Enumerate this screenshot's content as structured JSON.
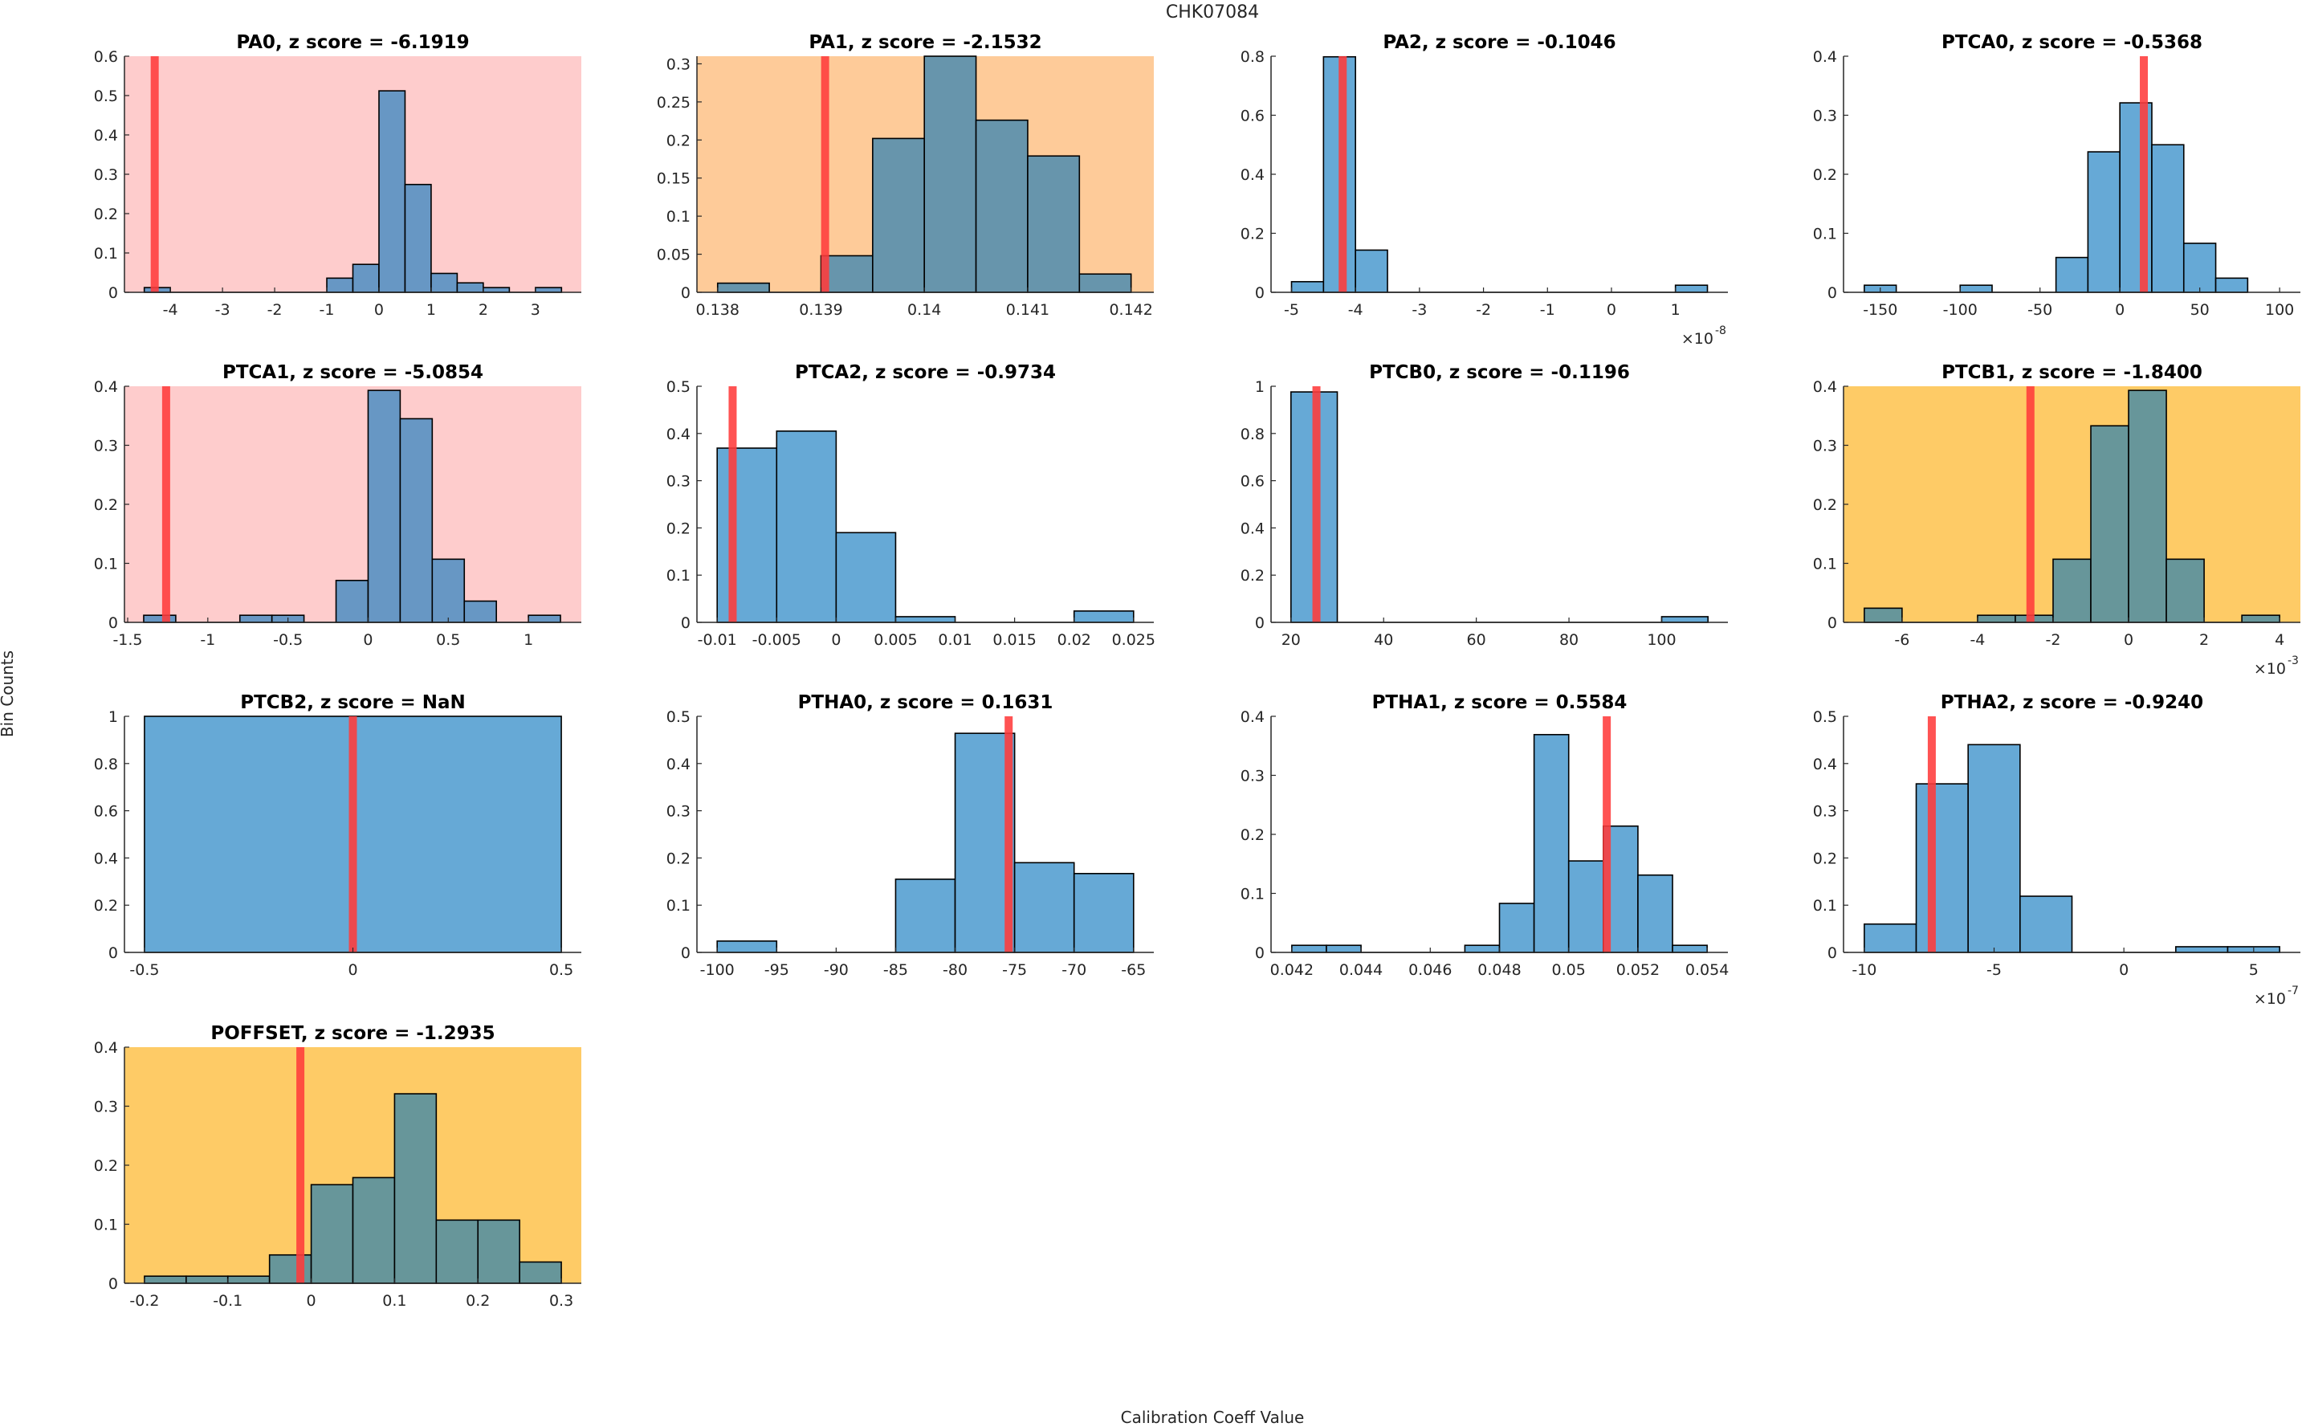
{
  "figure": {
    "suptitle": "CHK07084",
    "ylabel": "Bin Counts",
    "xlabel": "Calibration Coeff Value",
    "colors": {
      "bar_blue": "#66a9d6",
      "bar_on_pink": "#6797c4",
      "bar_on_orange": "#6795ac",
      "bar_on_yellow": "#67969a",
      "bg_pink": "#fecccc",
      "bg_orange": "#fecb99",
      "bg_yellow": "#fecb66",
      "marker_red": "#ff3b3b"
    }
  },
  "chart_data": [
    {
      "type": "bar",
      "name": "PA0",
      "title": "PA0, z score = -6.1919",
      "z_score": -6.1919,
      "background": "pink",
      "bin_edges_start": -4.5,
      "bin_width": 0.5,
      "values": [
        0.012,
        0,
        0,
        0,
        0,
        0,
        0,
        0.036,
        0.071,
        0.512,
        0.274,
        0.048,
        0.024,
        0.012,
        0,
        0.012
      ],
      "marker": -4.3,
      "xlim": [
        -4.88,
        3.88
      ],
      "ylim": [
        0,
        0.6
      ],
      "xticks": [
        -4,
        -3,
        -2,
        -1,
        0,
        1,
        2,
        3
      ],
      "xtick_labels": [
        "-4",
        "-3",
        "-2",
        "-1",
        "0",
        "1",
        "2",
        "3"
      ],
      "yticks": [
        0,
        0.1,
        0.2,
        0.3,
        0.4,
        0.5,
        0.6
      ],
      "ytick_labels": [
        "0",
        "0.1",
        "0.2",
        "0.3",
        "0.4",
        "0.5",
        "0.6"
      ],
      "exponent": ""
    },
    {
      "type": "bar",
      "name": "PA1",
      "title": "PA1, z score = -2.1532",
      "z_score": -2.1532,
      "background": "orange",
      "bin_edges_start": 0.138,
      "bin_width": 0.0005,
      "values": [
        0.012,
        0,
        0.048,
        0.202,
        0.31,
        0.226,
        0.179,
        0.024
      ],
      "marker": 0.13904,
      "xlim": [
        0.1378,
        0.14222
      ],
      "ylim": [
        0,
        0.31
      ],
      "xticks": [
        0.138,
        0.139,
        0.14,
        0.141,
        0.142
      ],
      "xtick_labels": [
        "0.138",
        "0.139",
        "0.14",
        "0.141",
        "0.142"
      ],
      "yticks": [
        0,
        0.05,
        0.1,
        0.15,
        0.2,
        0.25,
        0.3
      ],
      "ytick_labels": [
        "0",
        "0.05",
        "0.1",
        "0.15",
        "0.2",
        "0.25",
        "0.3"
      ],
      "exponent": ""
    },
    {
      "type": "bar",
      "name": "PA2",
      "title": "PA2, z score = -0.1046",
      "z_score": -0.1046,
      "background": "none",
      "bin_edges_start": -5,
      "bin_width": 0.5,
      "values": [
        0.036,
        0.798,
        0.143,
        0,
        0,
        0,
        0,
        0,
        0,
        0,
        0,
        0,
        0.024
      ],
      "marker": -4.2,
      "xlim": [
        -5.32,
        1.82
      ],
      "ylim": [
        0,
        0.8
      ],
      "xticks": [
        -5,
        -4,
        -3,
        -2,
        -1,
        0,
        1
      ],
      "xtick_labels": [
        "-5",
        "-4",
        "-3",
        "-2",
        "-1",
        "0",
        "1"
      ],
      "yticks": [
        0,
        0.2,
        0.4,
        0.6,
        0.8
      ],
      "ytick_labels": [
        "0",
        "0.2",
        "0.4",
        "0.6",
        "0.8"
      ],
      "exponent": "×10",
      "exponent_power": "-8"
    },
    {
      "type": "bar",
      "name": "PTCA0",
      "title": "PTCA0, z score = -0.5368",
      "z_score": -0.5368,
      "background": "none",
      "bin_edges_start": -160,
      "bin_width": 20,
      "values": [
        0.012,
        0,
        0,
        0.012,
        0,
        0,
        0.059,
        0.238,
        0.321,
        0.25,
        0.083,
        0.024
      ],
      "marker": 15,
      "xlim": [
        -173,
        113
      ],
      "ylim": [
        0,
        0.4
      ],
      "xticks": [
        -150,
        -100,
        -50,
        0,
        50,
        100
      ],
      "xtick_labels": [
        "-150",
        "-100",
        "-50",
        "0",
        "50",
        "100"
      ],
      "yticks": [
        0,
        0.1,
        0.2,
        0.3,
        0.4
      ],
      "ytick_labels": [
        "0",
        "0.1",
        "0.2",
        "0.3",
        "0.4"
      ],
      "exponent": ""
    },
    {
      "type": "bar",
      "name": "PTCA1",
      "title": "PTCA1, z score = -5.0854",
      "z_score": -5.0854,
      "background": "pink",
      "bin_edges_start": -1.4,
      "bin_width": 0.2,
      "values": [
        0.012,
        0,
        0,
        0.012,
        0.012,
        0,
        0.071,
        0.393,
        0.345,
        0.107,
        0.036,
        0,
        0.012
      ],
      "marker": -1.26,
      "xlim": [
        -1.52,
        1.33
      ],
      "ylim": [
        0,
        0.4
      ],
      "xticks": [
        -1.5,
        -1,
        -0.5,
        0,
        0.5,
        1
      ],
      "xtick_labels": [
        "-1.5",
        "-1",
        "-0.5",
        "0",
        "0.5",
        "1"
      ],
      "yticks": [
        0,
        0.1,
        0.2,
        0.3,
        0.4
      ],
      "ytick_labels": [
        "0",
        "0.1",
        "0.2",
        "0.3",
        "0.4"
      ],
      "exponent": ""
    },
    {
      "type": "bar",
      "name": "PTCA2",
      "title": "PTCA2, z score = -0.9734",
      "z_score": -0.9734,
      "background": "none",
      "bin_edges_start": -0.01,
      "bin_width": 0.005,
      "values": [
        0.369,
        0.405,
        0.19,
        0.012,
        0,
        0,
        0.024
      ],
      "marker": -0.0087,
      "xlim": [
        -0.0117,
        0.0267
      ],
      "ylim": [
        0,
        0.5
      ],
      "xticks": [
        -0.01,
        -0.005,
        0,
        0.005,
        0.01,
        0.015,
        0.02,
        0.025
      ],
      "xtick_labels": [
        "-0.01",
        "-0.005",
        "0",
        "0.005",
        "0.01",
        "0.015",
        "0.02",
        "0.025"
      ],
      "yticks": [
        0,
        0.1,
        0.2,
        0.3,
        0.4,
        0.5
      ],
      "ytick_labels": [
        "0",
        "0.1",
        "0.2",
        "0.3",
        "0.4",
        "0.5"
      ],
      "exponent": ""
    },
    {
      "type": "bar",
      "name": "PTCB0",
      "title": "PTCB0, z score = -0.1196",
      "z_score": -0.1196,
      "background": "none",
      "bin_edges_start": 20,
      "bin_width": 10,
      "values": [
        0.976,
        0,
        0,
        0,
        0,
        0,
        0,
        0,
        0.024
      ],
      "marker": 25.5,
      "xlim": [
        15.7,
        114.3
      ],
      "ylim": [
        0,
        1
      ],
      "xticks": [
        20,
        40,
        60,
        80,
        100
      ],
      "xtick_labels": [
        "20",
        "40",
        "60",
        "80",
        "100"
      ],
      "yticks": [
        0,
        0.2,
        0.4,
        0.6,
        0.8,
        1
      ],
      "ytick_labels": [
        "0",
        "0.2",
        "0.4",
        "0.6",
        "0.8",
        "1"
      ],
      "exponent": ""
    },
    {
      "type": "bar",
      "name": "PTCB1",
      "title": "PTCB1, z score = -1.8400",
      "z_score": -1.84,
      "background": "yellow",
      "bin_edges_start": -7,
      "bin_width": 1,
      "values": [
        0.024,
        0,
        0,
        0.012,
        0.012,
        0.107,
        0.333,
        0.393,
        0.107,
        0,
        0.012
      ],
      "marker": -2.6,
      "xlim": [
        -7.55,
        4.55
      ],
      "ylim": [
        0,
        0.4
      ],
      "xticks": [
        -6,
        -4,
        -2,
        0,
        2,
        4
      ],
      "xtick_labels": [
        "-6",
        "-4",
        "-2",
        "0",
        "2",
        "4"
      ],
      "yticks": [
        0,
        0.1,
        0.2,
        0.3,
        0.4
      ],
      "ytick_labels": [
        "0",
        "0.1",
        "0.2",
        "0.3",
        "0.4"
      ],
      "exponent": "×10",
      "exponent_power": "-3"
    },
    {
      "type": "bar",
      "name": "PTCB2",
      "title": "PTCB2, z score = NaN",
      "z_score": "NaN",
      "background": "none",
      "bin_edges_start": -0.5,
      "bin_width": 1,
      "values": [
        1
      ],
      "marker": 0,
      "xlim": [
        -0.548,
        0.548
      ],
      "ylim": [
        0,
        1
      ],
      "xticks": [
        -0.5,
        0,
        0.5
      ],
      "xtick_labels": [
        "-0.5",
        "0",
        "0.5"
      ],
      "yticks": [
        0,
        0.2,
        0.4,
        0.6,
        0.8,
        1
      ],
      "ytick_labels": [
        "0",
        "0.2",
        "0.4",
        "0.6",
        "0.8",
        "1"
      ],
      "exponent": ""
    },
    {
      "type": "bar",
      "name": "PTHA0",
      "title": "PTHA0, z score = 0.1631",
      "z_score": 0.1631,
      "background": "none",
      "bin_edges_start": -100,
      "bin_width": 5,
      "values": [
        0.024,
        0,
        0,
        0.155,
        0.464,
        0.19,
        0.167
      ],
      "marker": -75.5,
      "xlim": [
        -101.7,
        -63.3
      ],
      "ylim": [
        0,
        0.5
      ],
      "xticks": [
        -100,
        -95,
        -90,
        -85,
        -80,
        -75,
        -70,
        -65
      ],
      "xtick_labels": [
        "-100",
        "-95",
        "-90",
        "-85",
        "-80",
        "-75",
        "-70",
        "-65"
      ],
      "yticks": [
        0,
        0.1,
        0.2,
        0.3,
        0.4,
        0.5
      ],
      "ytick_labels": [
        "0",
        "0.1",
        "0.2",
        "0.3",
        "0.4",
        "0.5"
      ],
      "exponent": ""
    },
    {
      "type": "bar",
      "name": "PTHA1",
      "title": "PTHA1, z score = 0.5584",
      "z_score": 0.5584,
      "background": "none",
      "bin_edges_start": 0.042,
      "bin_width": 0.001,
      "values": [
        0.012,
        0.012,
        0,
        0,
        0,
        0.012,
        0.083,
        0.369,
        0.155,
        0.214,
        0.131,
        0.012
      ],
      "marker": 0.0511,
      "xlim": [
        0.0414,
        0.0546
      ],
      "ylim": [
        0,
        0.4
      ],
      "xticks": [
        0.042,
        0.044,
        0.046,
        0.048,
        0.05,
        0.052,
        0.054
      ],
      "xtick_labels": [
        "0.042",
        "0.044",
        "0.046",
        "0.048",
        "0.05",
        "0.052",
        "0.054"
      ],
      "yticks": [
        0,
        0.1,
        0.2,
        0.3,
        0.4
      ],
      "ytick_labels": [
        "0",
        "0.1",
        "0.2",
        "0.3",
        "0.4"
      ],
      "exponent": ""
    },
    {
      "type": "bar",
      "name": "PTHA2",
      "title": "PTHA2, z score = -0.9240",
      "z_score": -0.924,
      "background": "none",
      "bin_edges_start": -10,
      "bin_width": 2,
      "values": [
        0.06,
        0.357,
        0.44,
        0.119,
        0,
        0,
        0.012,
        0.012
      ],
      "marker": -7.4,
      "xlim": [
        -10.8,
        6.8
      ],
      "ylim": [
        0,
        0.5
      ],
      "xticks": [
        -10,
        -5,
        0,
        5
      ],
      "xtick_labels": [
        "-10",
        "-5",
        "0",
        "5"
      ],
      "yticks": [
        0,
        0.1,
        0.2,
        0.3,
        0.4,
        0.5
      ],
      "ytick_labels": [
        "0",
        "0.1",
        "0.2",
        "0.3",
        "0.4",
        "0.5"
      ],
      "exponent": "×10",
      "exponent_power": "-7"
    },
    {
      "type": "bar",
      "name": "POFFSET",
      "title": "POFFSET, z score = -1.2935",
      "z_score": -1.2935,
      "background": "yellow",
      "bin_edges_start": -0.2,
      "bin_width": 0.05,
      "values": [
        0.012,
        0.012,
        0.012,
        0.048,
        0.167,
        0.179,
        0.321,
        0.107,
        0.107,
        0.036
      ],
      "marker": -0.013,
      "xlim": [
        -0.224,
        0.324
      ],
      "ylim": [
        0,
        0.4
      ],
      "xticks": [
        -0.2,
        -0.1,
        0,
        0.1,
        0.2,
        0.3
      ],
      "xtick_labels": [
        "-0.2",
        "-0.1",
        "0",
        "0.1",
        "0.2",
        "0.3"
      ],
      "yticks": [
        0,
        0.1,
        0.2,
        0.3,
        0.4
      ],
      "ytick_labels": [
        "0",
        "0.1",
        "0.2",
        "0.3",
        "0.4"
      ],
      "exponent": ""
    }
  ]
}
